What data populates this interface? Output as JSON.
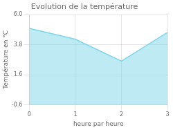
{
  "chart_data": {
    "type": "area",
    "title": "Evolution de la température",
    "xlabel": "heure par heure",
    "ylabel": "Température en °C",
    "x": [
      0,
      1,
      2,
      3
    ],
    "values": [
      5.0,
      4.2,
      2.6,
      4.7
    ],
    "color": "#7dd6e8",
    "xlim": [
      0,
      3
    ],
    "xticks": [
      0,
      1,
      2,
      3
    ],
    "ylim": [
      -0.6,
      6.0
    ],
    "yticks": [
      -0.6,
      1.6,
      3.8,
      {
        "value": 6.0,
        "label": "6.0"
      }
    ],
    "grid": true
  }
}
